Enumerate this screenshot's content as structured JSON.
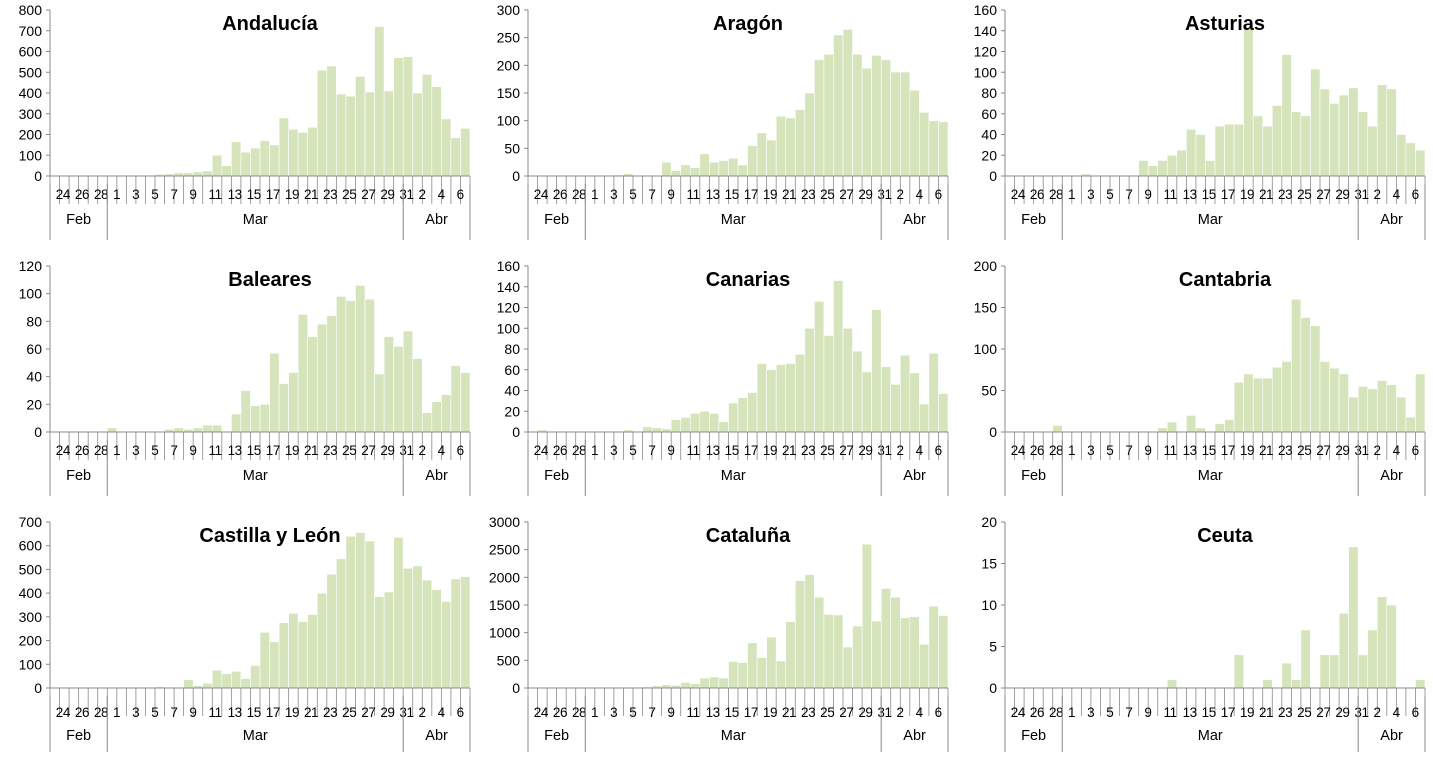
{
  "colors": {
    "bar": "#d6e4bc",
    "bar_edge": "#ffffff",
    "axis": "#888888"
  },
  "chart_data": [
    {
      "type": "bar",
      "title": "Andalucía",
      "ylim": [
        0,
        800
      ],
      "yticks": [
        0,
        100,
        200,
        300,
        400,
        500,
        600,
        700,
        800
      ],
      "x_tick_labels": [
        "24",
        "26",
        "28",
        "1",
        "3",
        "5",
        "7",
        "9",
        "11",
        "13",
        "15",
        "17",
        "19",
        "21",
        "23",
        "25",
        "27",
        "29",
        "31",
        "2",
        "4",
        "6"
      ],
      "months": [
        "Feb",
        "Mar",
        "Abr"
      ],
      "grid": false,
      "values": [
        0,
        0,
        0,
        0,
        0,
        0,
        0,
        0,
        0,
        0,
        0,
        2,
        4,
        8,
        10,
        15,
        15,
        20,
        25,
        100,
        50,
        165,
        115,
        135,
        170,
        150,
        280,
        225,
        210,
        235,
        510,
        530,
        395,
        385,
        480,
        405,
        720,
        410,
        570,
        575,
        400,
        490,
        430,
        275,
        185,
        230
      ]
    },
    {
      "type": "bar",
      "title": "Aragón",
      "ylim": [
        0,
        300
      ],
      "yticks": [
        0,
        50,
        100,
        150,
        200,
        250,
        300
      ],
      "x_tick_labels": [
        "24",
        "26",
        "28",
        "1",
        "3",
        "5",
        "7",
        "9",
        "11",
        "13",
        "15",
        "17",
        "19",
        "21",
        "23",
        "25",
        "27",
        "29",
        "31",
        "2",
        "4",
        "6"
      ],
      "months": [
        "Feb",
        "Mar",
        "Abr"
      ],
      "grid": false,
      "values": [
        0,
        0,
        0,
        0,
        0,
        0,
        0,
        0,
        0,
        0,
        0,
        0,
        2,
        4,
        0,
        0,
        0,
        25,
        10,
        20,
        15,
        40,
        25,
        28,
        32,
        20,
        55,
        78,
        65,
        108,
        105,
        120,
        150,
        210,
        220,
        255,
        265,
        220,
        195,
        218,
        210,
        188,
        188,
        155,
        115,
        100,
        98
      ]
    },
    {
      "type": "bar",
      "title": "Asturias",
      "ylim": [
        0,
        160
      ],
      "yticks": [
        0,
        20,
        40,
        60,
        80,
        100,
        120,
        140,
        160
      ],
      "x_tick_labels": [
        "24",
        "26",
        "28",
        "1",
        "3",
        "5",
        "7",
        "9",
        "11",
        "13",
        "15",
        "17",
        "19",
        "21",
        "23",
        "25",
        "27",
        "29",
        "31",
        "2",
        "4",
        "6"
      ],
      "months": [
        "Feb",
        "Mar",
        "Abr"
      ],
      "grid": false,
      "values": [
        0,
        0,
        0,
        0,
        0,
        0,
        0,
        0,
        0,
        2,
        0,
        0,
        0,
        0,
        0,
        15,
        10,
        15,
        20,
        25,
        45,
        40,
        15,
        48,
        50,
        50,
        142,
        58,
        48,
        68,
        117,
        62,
        58,
        103,
        84,
        70,
        78,
        85,
        62,
        48,
        88,
        84,
        40,
        32,
        25
      ]
    },
    {
      "type": "bar",
      "title": "Baleares",
      "ylim": [
        0,
        120
      ],
      "yticks": [
        0,
        20,
        40,
        60,
        80,
        100,
        120
      ],
      "x_tick_labels": [
        "24",
        "26",
        "28",
        "1",
        "3",
        "5",
        "7",
        "9",
        "11",
        "13",
        "15",
        "17",
        "19",
        "21",
        "23",
        "25",
        "27",
        "29",
        "31",
        "2",
        "4",
        "6"
      ],
      "months": [
        "Feb",
        "Mar",
        "Abr"
      ],
      "grid": false,
      "values": [
        0,
        0,
        0,
        0,
        0,
        0,
        0,
        0,
        0,
        3,
        0,
        0,
        0,
        0,
        0,
        2,
        3,
        2,
        3,
        5,
        5,
        0,
        13,
        30,
        19,
        20,
        57,
        35,
        43,
        85,
        69,
        78,
        84,
        98,
        95,
        106,
        96,
        42,
        69,
        62,
        73,
        53,
        14,
        22,
        27,
        48,
        43
      ]
    },
    {
      "type": "bar",
      "title": "Canarias",
      "ylim": [
        0,
        160
      ],
      "yticks": [
        0,
        20,
        40,
        60,
        80,
        100,
        120,
        140,
        160
      ],
      "x_tick_labels": [
        "24",
        "26",
        "28",
        "1",
        "3",
        "5",
        "7",
        "9",
        "11",
        "13",
        "15",
        "17",
        "19",
        "21",
        "23",
        "25",
        "27",
        "29",
        "31",
        "2",
        "4",
        "6"
      ],
      "months": [
        "Feb",
        "Mar",
        "Abr"
      ],
      "grid": false,
      "values": [
        0,
        2,
        0,
        0,
        0,
        0,
        0,
        0,
        0,
        0,
        2,
        0,
        5,
        4,
        3,
        12,
        14,
        18,
        20,
        18,
        10,
        28,
        33,
        38,
        66,
        60,
        65,
        66,
        75,
        100,
        126,
        93,
        146,
        100,
        78,
        58,
        118,
        63,
        46,
        74,
        57,
        27,
        76,
        37
      ]
    },
    {
      "type": "bar",
      "title": "Cantabria",
      "ylim": [
        0,
        200
      ],
      "yticks": [
        0,
        50,
        100,
        150,
        200
      ],
      "x_tick_labels": [
        "24",
        "26",
        "28",
        "1",
        "3",
        "5",
        "7",
        "9",
        "11",
        "13",
        "15",
        "17",
        "19",
        "21",
        "23",
        "25",
        "27",
        "29",
        "31",
        "2",
        "4",
        "6"
      ],
      "months": [
        "Feb",
        "Mar",
        "Abr"
      ],
      "grid": false,
      "values": [
        0,
        0,
        0,
        0,
        0,
        8,
        0,
        0,
        0,
        0,
        0,
        0,
        0,
        0,
        0,
        0,
        5,
        12,
        0,
        20,
        5,
        0,
        10,
        15,
        60,
        70,
        65,
        65,
        78,
        85,
        160,
        138,
        128,
        85,
        77,
        70,
        42,
        55,
        52,
        62,
        57,
        42,
        18,
        70
      ]
    },
    {
      "type": "bar",
      "title": "Castilla y León",
      "ylim": [
        0,
        700
      ],
      "yticks": [
        0,
        100,
        200,
        300,
        400,
        500,
        600,
        700
      ],
      "x_tick_labels": [
        "24",
        "26",
        "28",
        "1",
        "3",
        "5",
        "7",
        "9",
        "11",
        "13",
        "15",
        "17",
        "19",
        "21",
        "23",
        "25",
        "27",
        "29",
        "31",
        "2",
        "4",
        "6"
      ],
      "months": [
        "Feb",
        "Mar",
        "Abr"
      ],
      "grid": false,
      "values": [
        0,
        0,
        0,
        0,
        0,
        0,
        0,
        0,
        0,
        0,
        0,
        0,
        0,
        0,
        0,
        5,
        0,
        0,
        35,
        10,
        20,
        75,
        60,
        70,
        40,
        95,
        235,
        195,
        275,
        315,
        280,
        310,
        400,
        480,
        545,
        640,
        655,
        620,
        385,
        405,
        635,
        505,
        515,
        455,
        415,
        365,
        460,
        470
      ]
    },
    {
      "type": "bar",
      "title": "Cataluña",
      "ylim": [
        0,
        3000
      ],
      "yticks": [
        0,
        500,
        1000,
        1500,
        2000,
        2500,
        3000
      ],
      "x_tick_labels": [
        "24",
        "26",
        "28",
        "1",
        "3",
        "5",
        "7",
        "9",
        "11",
        "13",
        "15",
        "17",
        "19",
        "21",
        "23",
        "25",
        "27",
        "29",
        "31",
        "2",
        "4",
        "6"
      ],
      "months": [
        "Feb",
        "Mar",
        "Abr"
      ],
      "grid": false,
      "values": [
        0,
        0,
        0,
        0,
        0,
        0,
        0,
        0,
        0,
        0,
        0,
        10,
        20,
        40,
        60,
        50,
        100,
        80,
        180,
        200,
        180,
        480,
        460,
        820,
        550,
        920,
        490,
        1200,
        1940,
        2050,
        1640,
        1330,
        1320,
        740,
        1120,
        2600,
        1210,
        1800,
        1640,
        1270,
        1290,
        790,
        1480,
        1310
      ]
    },
    {
      "type": "bar",
      "title": "Ceuta",
      "ylim": [
        0,
        20
      ],
      "yticks": [
        0,
        5,
        10,
        15,
        20
      ],
      "x_tick_labels": [
        "24",
        "26",
        "28",
        "1",
        "3",
        "5",
        "7",
        "9",
        "11",
        "13",
        "15",
        "17",
        "19",
        "21",
        "23",
        "25",
        "27",
        "29",
        "31",
        "2",
        "4",
        "6"
      ],
      "months": [
        "Feb",
        "Mar",
        "Abr"
      ],
      "grid": false,
      "values": [
        0,
        0,
        0,
        0,
        0,
        0,
        0,
        0,
        0,
        0,
        0,
        0,
        0,
        0,
        0,
        0,
        0,
        0,
        0,
        1,
        0,
        0,
        0,
        0,
        0,
        0,
        4,
        0,
        0,
        1,
        0,
        3,
        1,
        7,
        0,
        4,
        4,
        9,
        17,
        4,
        7,
        11,
        10,
        0,
        0,
        1
      ]
    }
  ]
}
